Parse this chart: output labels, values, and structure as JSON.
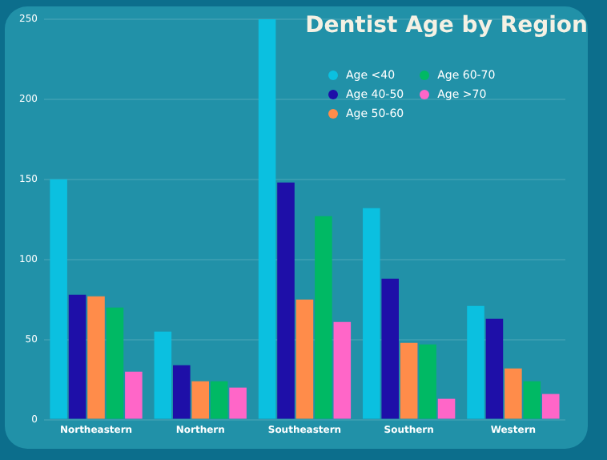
{
  "chart_data": {
    "type": "bar",
    "title": "Dentist Age by Region",
    "categories": [
      "Northeastern",
      "Northern",
      "Southeastern",
      "Southern",
      "Western"
    ],
    "series": [
      {
        "name": "Age <40",
        "color": "#0bc0e0",
        "values": [
          150,
          55,
          250,
          132,
          71
        ]
      },
      {
        "name": "Age 40-50",
        "color": "#1e0fa8",
        "values": [
          78,
          34,
          148,
          88,
          63
        ]
      },
      {
        "name": "Age 50-60",
        "color": "#ff8c4a",
        "values": [
          77,
          24,
          75,
          48,
          32
        ]
      },
      {
        "name": "Age 60-70",
        "color": "#00b964",
        "values": [
          70,
          24,
          127,
          47,
          24
        ]
      },
      {
        "name": "Age >70",
        "color": "#ff66c8",
        "values": [
          30,
          20,
          61,
          13,
          16
        ]
      }
    ],
    "ylim": [
      0,
      250
    ],
    "yticks": [
      0,
      50,
      100,
      150,
      200,
      250
    ],
    "grid": "y",
    "legend": "top right"
  }
}
